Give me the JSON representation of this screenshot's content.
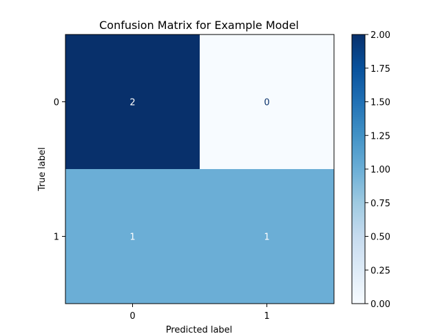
{
  "chart_data": {
    "type": "heatmap",
    "title": "Confusion Matrix for Example Model",
    "xlabel": "Predicted label",
    "ylabel": "True label",
    "x_categories": [
      "0",
      "1"
    ],
    "y_categories": [
      "0",
      "1"
    ],
    "matrix": [
      [
        2,
        0
      ],
      [
        1,
        1
      ]
    ],
    "cell_labels": [
      [
        "2",
        "0"
      ],
      [
        "1",
        "1"
      ]
    ],
    "colormap": "Blues",
    "colorbar": {
      "range": [
        0,
        2
      ],
      "ticks": [
        0,
        0.25,
        0.5,
        0.75,
        1,
        1.25,
        1.5,
        1.75,
        2
      ],
      "tick_labels": [
        "0.00",
        "0.25",
        "0.50",
        "0.75",
        "1.00",
        "1.25",
        "1.50",
        "1.75",
        "2.00"
      ]
    },
    "colors": {
      "max": "#08306b",
      "mid": "#6baed6",
      "min": "#f7fbff",
      "text_on_dark": "#ffffff",
      "text_on_light": "#08306b"
    },
    "grid": false
  }
}
